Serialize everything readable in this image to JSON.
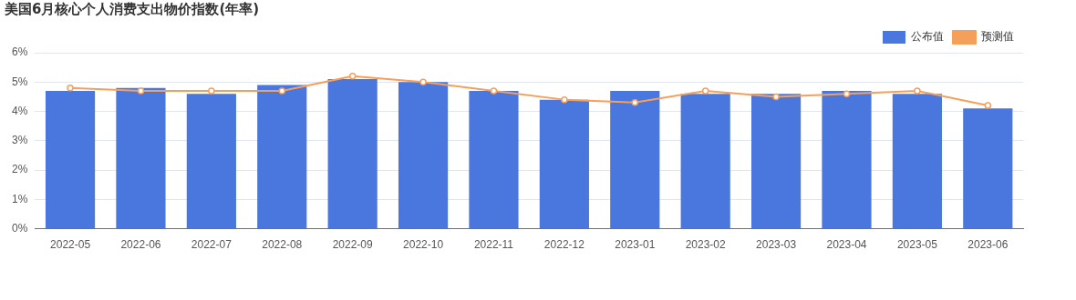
{
  "chart_data": {
    "type": "bar",
    "title": "美国6月核心个人消费支出物价指数(年率)",
    "categories": [
      "2022-05",
      "2022-06",
      "2022-07",
      "2022-08",
      "2022-09",
      "2022-10",
      "2022-11",
      "2022-12",
      "2023-01",
      "2023-02",
      "2023-03",
      "2023-04",
      "2023-05",
      "2023-06"
    ],
    "series": [
      {
        "name": "公布值",
        "color": "#4a77dd",
        "values": [
          4.7,
          4.8,
          4.6,
          4.9,
          5.1,
          5.0,
          4.7,
          4.4,
          4.7,
          4.6,
          4.6,
          4.7,
          4.6,
          4.1
        ]
      },
      {
        "name": "预测值",
        "type": "line",
        "color": "#f5a05a",
        "values": [
          4.8,
          4.7,
          4.7,
          4.7,
          5.2,
          5.0,
          4.7,
          4.4,
          4.3,
          4.7,
          4.5,
          4.6,
          4.7,
          4.2
        ]
      }
    ],
    "ylim": [
      0,
      6
    ],
    "yticks": [
      {
        "value": 0,
        "label": "0%"
      },
      {
        "value": 1,
        "label": "1%"
      },
      {
        "value": 2,
        "label": "2%"
      },
      {
        "value": 3,
        "label": "3%"
      },
      {
        "value": 4,
        "label": "4%"
      },
      {
        "value": 5,
        "label": "5%"
      },
      {
        "value": 6,
        "label": "6%"
      }
    ],
    "grid": "y",
    "legend": "top right",
    "marker": "circle"
  }
}
